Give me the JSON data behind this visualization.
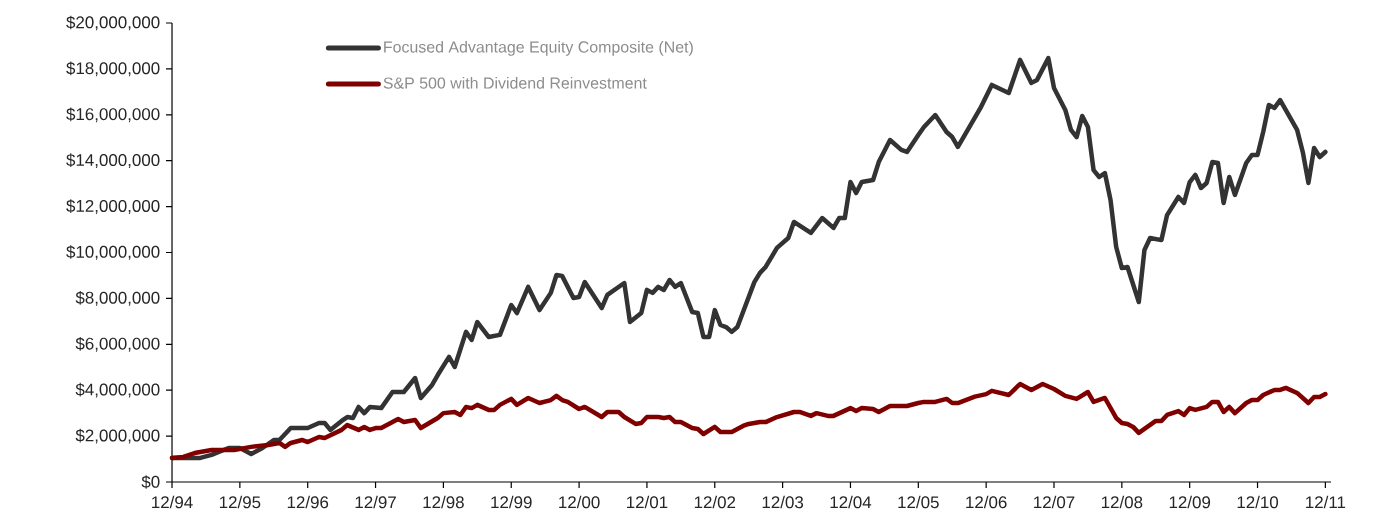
{
  "chart_data": {
    "type": "line",
    "xlim": [
      "1994-12",
      "2012-01"
    ],
    "xticks": [
      {
        "value": "1994-12",
        "label": "12/94"
      },
      {
        "value": "1995-12",
        "label": "12/95"
      },
      {
        "value": "1996-12",
        "label": "12/96"
      },
      {
        "value": "1997-12",
        "label": "12/97"
      },
      {
        "value": "1998-12",
        "label": "12/98"
      },
      {
        "value": "1999-12",
        "label": "12/99"
      },
      {
        "value": "2000-12",
        "label": "12/00"
      },
      {
        "value": "2001-12",
        "label": "12/01"
      },
      {
        "value": "2002-12",
        "label": "12/02"
      },
      {
        "value": "2003-12",
        "label": "12/03"
      },
      {
        "value": "2004-12",
        "label": "12/04"
      },
      {
        "value": "2005-12",
        "label": "12/05"
      },
      {
        "value": "2006-12",
        "label": "12/06"
      },
      {
        "value": "2007-12",
        "label": "12/07"
      },
      {
        "value": "2008-12",
        "label": "12/08"
      },
      {
        "value": "2009-12",
        "label": "12/09"
      },
      {
        "value": "2010-12",
        "label": "12/10"
      },
      {
        "value": "2011-12",
        "label": "12/11"
      }
    ],
    "ylim": [
      0,
      20000000
    ],
    "yticks": [
      {
        "value": 0,
        "label": "$0"
      },
      {
        "value": 2000000,
        "label": "$2,000,000"
      },
      {
        "value": 4000000,
        "label": "$4,000,000"
      },
      {
        "value": 6000000,
        "label": "$6,000,000"
      },
      {
        "value": 8000000,
        "label": "$8,000,000"
      },
      {
        "value": 10000000,
        "label": "$10,000,000"
      },
      {
        "value": 12000000,
        "label": "$12,000,000"
      },
      {
        "value": 14000000,
        "label": "$14,000,000"
      },
      {
        "value": 16000000,
        "label": "$16,000,000"
      },
      {
        "value": 18000000,
        "label": "$18,000,000"
      },
      {
        "value": 20000000,
        "label": "$20,000,000"
      }
    ],
    "legend": "top left",
    "grid": false,
    "series": [
      {
        "name": "Focused Advantage Equity Composite (Net)",
        "color": "#333333",
        "x": [
          "1994-12",
          "1995-05",
          "1995-07",
          "1995-10",
          "1995-12",
          "1996-02",
          "1996-04",
          "1996-06",
          "1996-07",
          "1996-09",
          "1996-12",
          "1997-02",
          "1997-03",
          "1997-04",
          "1997-06",
          "1997-07",
          "1997-08",
          "1997-09",
          "1997-10",
          "1997-11",
          "1998-01",
          "1998-03",
          "1998-05",
          "1998-07",
          "1998-08",
          "1998-10",
          "1998-11",
          "1999-01",
          "1999-02",
          "1999-04",
          "1999-05",
          "1999-06",
          "1999-08",
          "1999-10",
          "1999-12",
          "2000-01",
          "2000-03",
          "2000-05",
          "2000-07",
          "2000-08",
          "2000-09",
          "2000-11",
          "2000-12",
          "2001-01",
          "2001-04",
          "2001-05",
          "2001-08",
          "2001-09",
          "2001-11",
          "2001-12",
          "2002-01",
          "2002-02",
          "2002-03",
          "2002-04",
          "2002-05",
          "2002-06",
          "2002-08",
          "2002-09",
          "2002-10",
          "2002-11",
          "2002-12",
          "2003-01",
          "2003-02",
          "2003-03",
          "2003-04",
          "2003-07",
          "2003-08",
          "2003-09",
          "2003-11",
          "2004-01",
          "2004-02",
          "2004-05",
          "2004-07",
          "2004-09",
          "2004-10",
          "2004-11",
          "2004-12",
          "2005-01",
          "2005-02",
          "2005-04",
          "2005-05",
          "2005-07",
          "2005-09",
          "2005-10",
          "2005-12",
          "2006-01",
          "2006-03",
          "2006-05",
          "2006-06",
          "2006-07",
          "2006-11",
          "2007-01",
          "2007-04",
          "2007-06",
          "2007-08",
          "2007-09",
          "2007-11",
          "2007-12",
          "2008-02",
          "2008-03",
          "2008-04",
          "2008-05",
          "2008-06",
          "2008-07",
          "2008-08",
          "2008-09",
          "2008-10",
          "2008-11",
          "2008-12",
          "2009-01",
          "2009-03",
          "2009-04",
          "2009-05",
          "2009-07",
          "2009-08",
          "2009-10",
          "2009-11",
          "2009-12",
          "2010-01",
          "2010-02",
          "2010-03",
          "2010-04",
          "2010-05",
          "2010-06",
          "2010-07",
          "2010-08",
          "2010-10",
          "2010-11",
          "2010-12",
          "2011-01",
          "2011-02",
          "2011-03",
          "2011-04",
          "2011-07",
          "2011-08",
          "2011-09",
          "2011-10",
          "2011-11",
          "2011-12"
        ],
        "values": [
          1050000,
          1050000,
          1180000,
          1480000,
          1480000,
          1220000,
          1480000,
          1830000,
          1830000,
          2350000,
          2350000,
          2570000,
          2570000,
          2270000,
          2660000,
          2830000,
          2790000,
          3270000,
          3000000,
          3270000,
          3220000,
          3920000,
          3920000,
          4530000,
          3660000,
          4230000,
          4660000,
          5450000,
          5010000,
          6540000,
          6190000,
          6970000,
          6320000,
          6410000,
          7710000,
          7360000,
          8500000,
          7490000,
          8240000,
          9020000,
          8980000,
          8020000,
          8060000,
          8710000,
          7580000,
          8150000,
          8670000,
          6970000,
          7360000,
          8370000,
          8240000,
          8500000,
          8370000,
          8800000,
          8500000,
          8670000,
          7410000,
          7360000,
          6320000,
          6320000,
          7490000,
          6840000,
          6750000,
          6540000,
          6750000,
          8710000,
          9110000,
          9370000,
          10200000,
          10630000,
          11330000,
          10850000,
          11500000,
          11070000,
          11500000,
          11500000,
          13070000,
          12590000,
          13070000,
          13160000,
          13940000,
          14900000,
          14470000,
          14380000,
          15120000,
          15470000,
          15990000,
          15250000,
          15030000,
          14600000,
          16300000,
          17300000,
          16950000,
          18390000,
          17390000,
          17520000,
          18470000,
          17170000,
          16210000,
          15340000,
          15030000,
          15950000,
          15470000,
          13590000,
          13290000,
          13460000,
          12290000,
          10240000,
          9320000,
          9370000,
          7840000,
          10110000,
          10630000,
          10540000,
          11630000,
          12420000,
          12160000,
          13070000,
          13380000,
          12810000,
          13030000,
          13940000,
          13900000,
          12160000,
          13290000,
          12510000,
          13900000,
          14250000,
          14250000,
          15250000,
          16430000,
          16300000,
          16640000,
          15340000,
          14380000,
          13030000,
          14550000,
          14160000,
          14380000
        ]
      },
      {
        "name": "S&P 500 with Dividend Reinvestment",
        "color": "#800000",
        "x": [
          "1994-12",
          "1995-02",
          "1995-04",
          "1995-07",
          "1995-11",
          "1996-02",
          "1996-05",
          "1996-07",
          "1996-08",
          "1996-09",
          "1996-11",
          "1996-12",
          "1997-02",
          "1997-03",
          "1997-06",
          "1997-07",
          "1997-09",
          "1997-10",
          "1997-11",
          "1997-12",
          "1998-01",
          "1998-03",
          "1998-04",
          "1998-05",
          "1998-07",
          "1998-08",
          "1998-11",
          "1998-12",
          "1999-02",
          "1999-03",
          "1999-04",
          "1999-05",
          "1999-06",
          "1999-08",
          "1999-09",
          "1999-10",
          "1999-12",
          "2000-01",
          "2000-03",
          "2000-05",
          "2000-07",
          "2000-08",
          "2000-09",
          "2000-10",
          "2000-12",
          "2001-01",
          "2001-04",
          "2001-05",
          "2001-07",
          "2001-08",
          "2001-10",
          "2001-11",
          "2001-12",
          "2002-02",
          "2002-03",
          "2002-04",
          "2002-05",
          "2002-06",
          "2002-08",
          "2002-09",
          "2002-10",
          "2002-12",
          "2003-01",
          "2003-03",
          "2003-05",
          "2003-06",
          "2003-08",
          "2003-09",
          "2003-11",
          "2004-02",
          "2004-03",
          "2004-05",
          "2004-06",
          "2004-08",
          "2004-09",
          "2004-12",
          "2005-01",
          "2005-02",
          "2005-04",
          "2005-05",
          "2005-06",
          "2005-07",
          "2005-10",
          "2005-12",
          "2006-01",
          "2006-03",
          "2006-05",
          "2006-06",
          "2006-07",
          "2006-10",
          "2006-12",
          "2007-01",
          "2007-04",
          "2007-06",
          "2007-08",
          "2007-10",
          "2007-12",
          "2008-02",
          "2008-04",
          "2008-06",
          "2008-07",
          "2008-09",
          "2008-11",
          "2008-12",
          "2009-01",
          "2009-02",
          "2009-03",
          "2009-06",
          "2009-07",
          "2009-08",
          "2009-10",
          "2009-11",
          "2009-12",
          "2010-01",
          "2010-03",
          "2010-04",
          "2010-05",
          "2010-06",
          "2010-07",
          "2010-08",
          "2010-10",
          "2010-11",
          "2010-12",
          "2011-01",
          "2011-03",
          "2011-04",
          "2011-05",
          "2011-07",
          "2011-09",
          "2011-10",
          "2011-11",
          "2011-12"
        ],
        "values": [
          1050000,
          1090000,
          1260000,
          1390000,
          1390000,
          1530000,
          1610000,
          1700000,
          1530000,
          1700000,
          1830000,
          1740000,
          1960000,
          1920000,
          2270000,
          2480000,
          2270000,
          2400000,
          2270000,
          2350000,
          2350000,
          2610000,
          2740000,
          2610000,
          2700000,
          2350000,
          2790000,
          3000000,
          3050000,
          2920000,
          3270000,
          3220000,
          3360000,
          3140000,
          3140000,
          3360000,
          3620000,
          3360000,
          3660000,
          3440000,
          3570000,
          3750000,
          3570000,
          3490000,
          3180000,
          3270000,
          2830000,
          3050000,
          3050000,
          2830000,
          2530000,
          2570000,
          2830000,
          2830000,
          2790000,
          2830000,
          2610000,
          2610000,
          2350000,
          2310000,
          2090000,
          2400000,
          2180000,
          2180000,
          2440000,
          2530000,
          2610000,
          2610000,
          2830000,
          3050000,
          3050000,
          2880000,
          3000000,
          2880000,
          2880000,
          3220000,
          3090000,
          3220000,
          3180000,
          3050000,
          3180000,
          3310000,
          3310000,
          3440000,
          3490000,
          3490000,
          3620000,
          3440000,
          3440000,
          3720000,
          3830000,
          3970000,
          3790000,
          4270000,
          4010000,
          4270000,
          4050000,
          3750000,
          3620000,
          3920000,
          3490000,
          3660000,
          2790000,
          2570000,
          2530000,
          2400000,
          2140000,
          2660000,
          2660000,
          2920000,
          3090000,
          2920000,
          3220000,
          3140000,
          3270000,
          3490000,
          3490000,
          3050000,
          3270000,
          3000000,
          3440000,
          3570000,
          3570000,
          3790000,
          4010000,
          4010000,
          4100000,
          3880000,
          3440000,
          3700000,
          3700000,
          3830000
        ]
      }
    ]
  }
}
